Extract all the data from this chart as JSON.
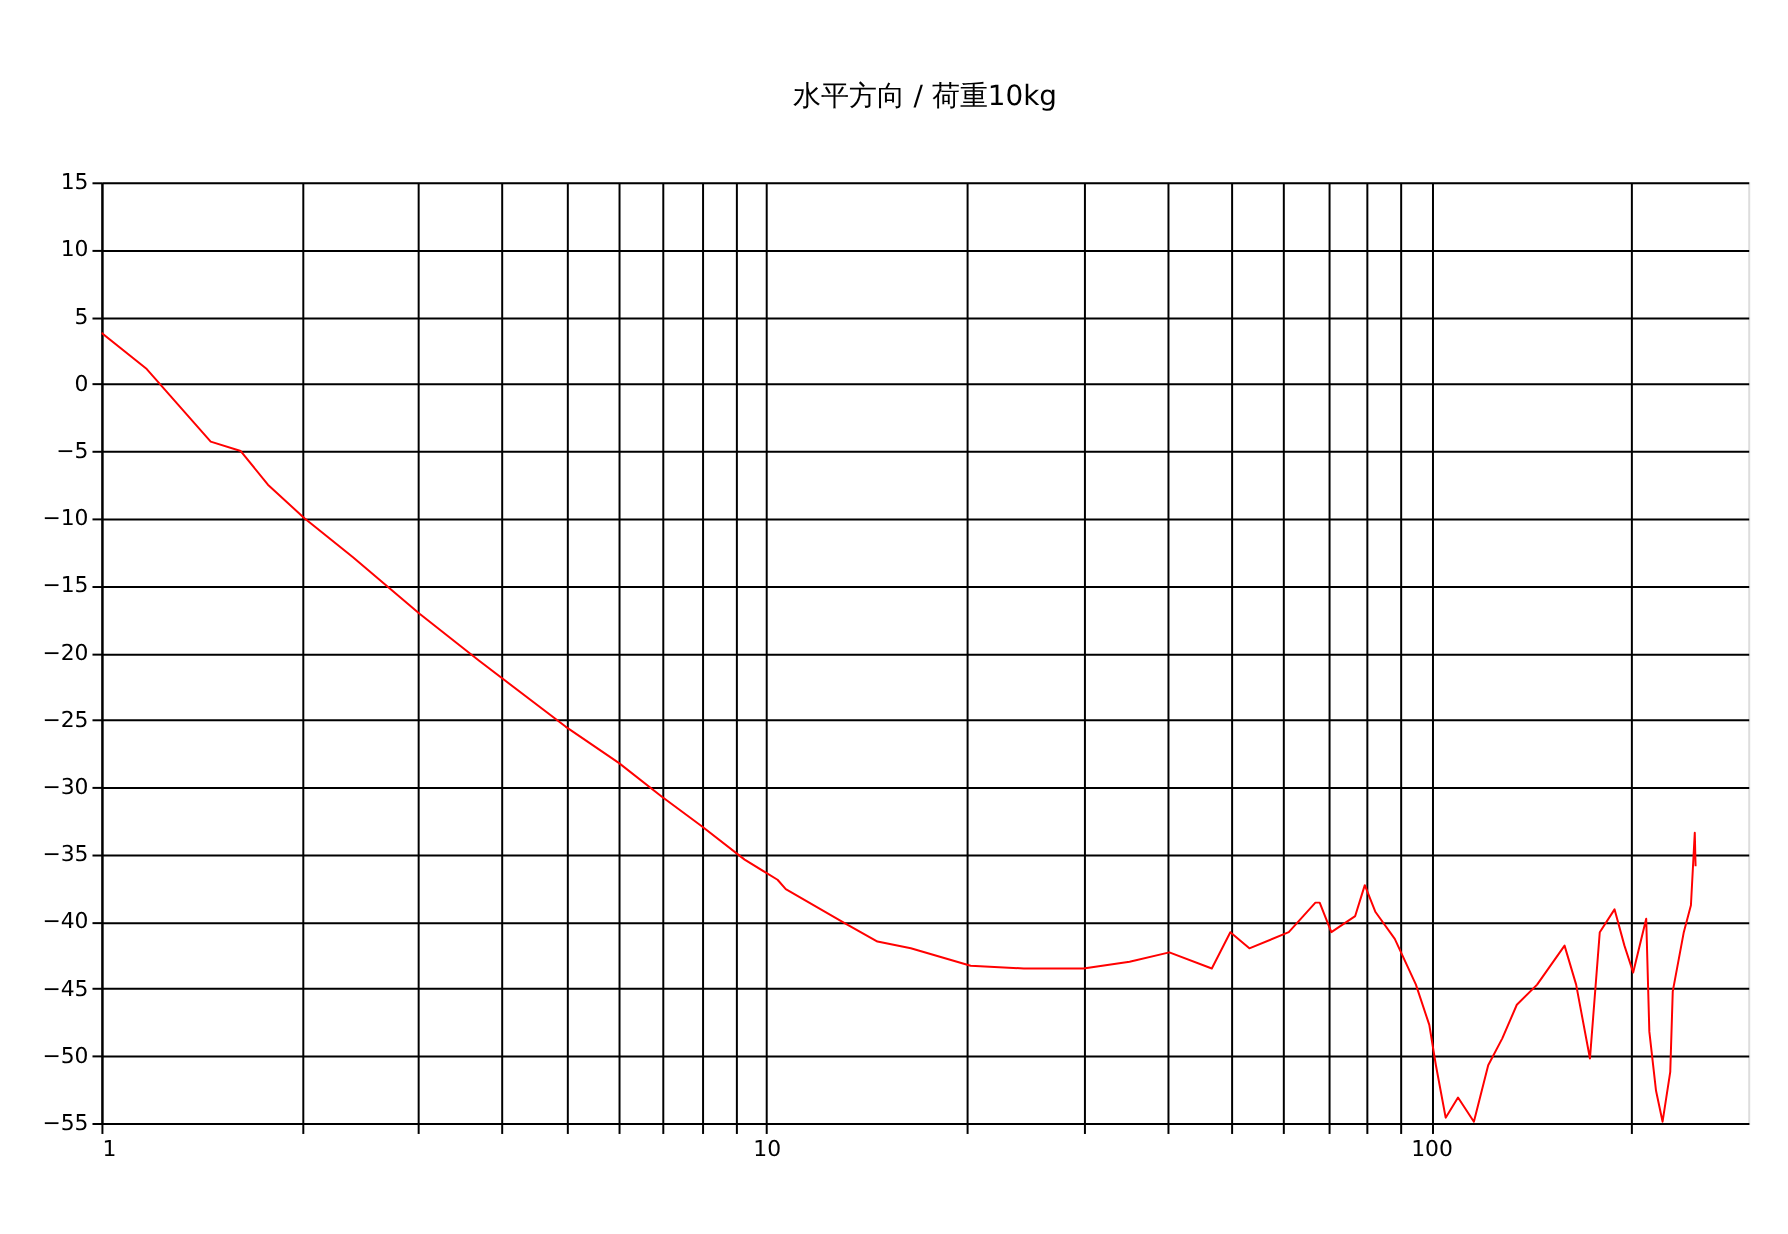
{
  "chart_data": {
    "type": "line",
    "title": "水平方向 / 荷重10kg",
    "x": [
      1,
      1.17,
      1.46,
      1.62,
      1.78,
      2.02,
      2.39,
      3.01,
      3.7,
      4.99,
      6.0,
      6.96,
      7.99,
      9.28,
      10.4,
      10.7,
      13.1,
      14.7,
      16.5,
      20.3,
      24.4,
      30.0,
      35.2,
      40.4,
      46.8,
      49.9,
      53.3,
      61.1,
      67.0,
      68.0,
      70.8,
      76.9,
      79.5,
      82.5,
      88.2,
      94.9,
      99.4,
      101.7,
      105.2,
      109.8,
      116,
      121.9,
      128,
      134.6,
      144.4,
      158.8,
      165.3,
      173.4,
      179.4,
      188.8,
      195.4,
      201.4,
      210.7,
      213,
      218,
      223,
      229,
      231,
      240,
      246,
      249.3,
      250
    ],
    "series": [
      {
        "color": "#ff0000",
        "values": [
          3.8,
          1.1,
          -4.3,
          -5.0,
          -7.5,
          -10.0,
          -12.9,
          -17.1,
          -20.6,
          -25.5,
          -28.2,
          -30.7,
          -32.9,
          -35.4,
          -36.9,
          -37.6,
          -40.1,
          -41.5,
          -42.0,
          -43.3,
          -43.5,
          -43.5,
          -43.0,
          -42.3,
          -43.5,
          -40.8,
          -42.0,
          -40.8,
          -38.6,
          -38.6,
          -40.8,
          -39.6,
          -37.3,
          -39.3,
          -41.3,
          -44.7,
          -47.7,
          -50.7,
          -54.6,
          -53.1,
          -54.9,
          -50.7,
          -48.7,
          -46.2,
          -44.7,
          -41.8,
          -44.7,
          -50.2,
          -40.8,
          -39.1,
          -41.8,
          -43.8,
          -39.8,
          -48.2,
          -52.6,
          -54.9,
          -51.2,
          -45.2,
          -40.8,
          -38.8,
          -33.4,
          -35.9
        ]
      }
    ],
    "log": "x",
    "xlim": [
      1,
      300
    ],
    "xticks": [
      1,
      {
        "value": 2,
        "label": null
      },
      {
        "value": 3,
        "label": null
      },
      {
        "value": 4,
        "label": null
      },
      {
        "value": 5,
        "label": null
      },
      {
        "value": 6,
        "label": null
      },
      {
        "value": 7,
        "label": null
      },
      {
        "value": 8,
        "label": null
      },
      {
        "value": 9,
        "label": null
      },
      10,
      {
        "value": 20,
        "label": null
      },
      {
        "value": 30,
        "label": null
      },
      {
        "value": 40,
        "label": null
      },
      {
        "value": 50,
        "label": null
      },
      {
        "value": 60,
        "label": null
      },
      {
        "value": 70,
        "label": null
      },
      {
        "value": 80,
        "label": null
      },
      {
        "value": 90,
        "label": null
      },
      100,
      {
        "value": 200,
        "label": null
      }
    ],
    "ylim": [
      -55,
      15
    ],
    "yticks": [
      -55,
      -50,
      -45,
      -40,
      -35,
      -30,
      -25,
      -20,
      -15,
      -10,
      -5,
      0,
      5,
      10,
      15
    ],
    "grid": true,
    "legend": false,
    "marker": "none",
    "line_style": "solid"
  }
}
